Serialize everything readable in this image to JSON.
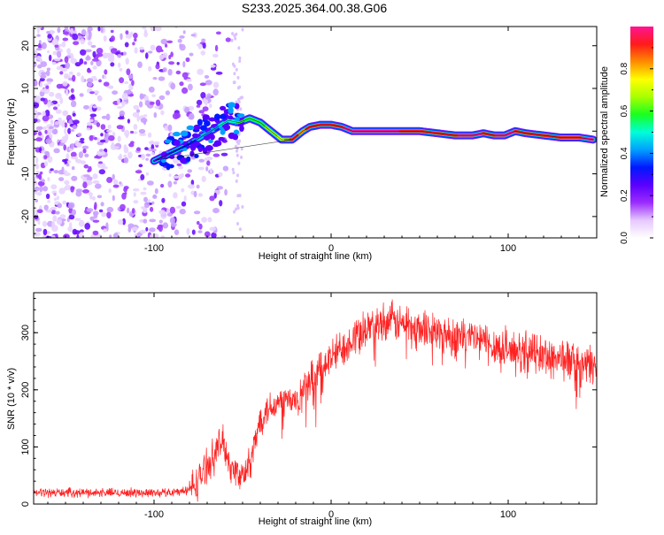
{
  "title": "S233.2025.364.00.38.G06",
  "chart_data": [
    {
      "type": "heatmap",
      "xlabel": "Height of straight line (km)",
      "ylabel": "Frequency (Hz)",
      "xlim": [
        -168,
        150
      ],
      "ylim": [
        -25,
        24.5
      ],
      "xticks": [
        -100,
        0,
        100
      ],
      "yticks": [
        -20,
        -10,
        0,
        10,
        20
      ],
      "colorbar": {
        "label": "Normalized spectral amplitude",
        "range": [
          0,
          1
        ],
        "ticks": [
          "0.0",
          "0.2",
          "0.4",
          "0.6",
          "0.8"
        ],
        "tick_values": [
          0,
          0.2,
          0.4,
          0.6,
          0.8
        ],
        "colors": [
          "#ffffff",
          "#e6c8ff",
          "#9b2cff",
          "#5a00ff",
          "#0018ff",
          "#00a0ff",
          "#00ffd8",
          "#18ff20",
          "#a8ff00",
          "#ffff00",
          "#ff8c00",
          "#ff1a1a",
          "#ff1493"
        ]
      },
      "ridge": {
        "x": [
          -100,
          -90,
          -80,
          -72,
          -64,
          -58,
          -52,
          -46,
          -40,
          -34,
          -28,
          -22,
          -16,
          -12,
          -6,
          0,
          6,
          12,
          20,
          30,
          40,
          50,
          60,
          70,
          80,
          86,
          92,
          98,
          104,
          110,
          120,
          130,
          140,
          148
        ],
        "freq": [
          -7,
          -5,
          -3,
          -1,
          1,
          2.5,
          2,
          3,
          2,
          0,
          -2,
          -2,
          0,
          1,
          1.5,
          1.5,
          1,
          0,
          0,
          0,
          0,
          0,
          -0.5,
          -1,
          -1,
          -0.5,
          -1,
          -1,
          0,
          -0.5,
          -1,
          -1.5,
          -1.5,
          -2
        ],
        "amplitude": [
          0.25,
          0.3,
          0.35,
          0.4,
          0.45,
          0.5,
          0.55,
          0.6,
          0.6,
          0.65,
          0.75,
          0.9,
          0.85,
          0.9,
          0.95,
          0.95,
          0.95,
          1,
          1,
          1,
          0.95,
          0.9,
          0.9,
          0.95,
          1,
          0.95,
          0.95,
          1,
          0.95,
          0.9,
          0.95,
          0.95,
          0.95,
          1
        ]
      }
    },
    {
      "type": "line",
      "xlabel": "Height of straight line (km)",
      "ylabel": "SNR (10 * v/v)",
      "xlim": [
        -168,
        150
      ],
      "ylim": [
        0,
        370
      ],
      "xticks": [
        -100,
        0,
        100
      ],
      "yticks": [
        0,
        100,
        200,
        300
      ],
      "color": "#ff2020",
      "series": [
        {
          "name": "SNR",
          "x": [
            -168,
            -150,
            -130,
            -110,
            -95,
            -85,
            -80,
            -75,
            -70,
            -65,
            -62,
            -60,
            -58,
            -56,
            -52,
            -48,
            -45,
            -42,
            -40,
            -38,
            -35,
            -32,
            -30,
            -28,
            -25,
            -22,
            -18,
            -15,
            -10,
            -5,
            0,
            5,
            10,
            15,
            20,
            25,
            30,
            35,
            40,
            45,
            50,
            55,
            60,
            70,
            80,
            90,
            100,
            110,
            120,
            130,
            140,
            150
          ],
          "values": [
            20,
            20,
            20,
            20,
            20,
            22,
            25,
            40,
            70,
            90,
            110,
            100,
            80,
            60,
            50,
            50,
            80,
            120,
            150,
            160,
            170,
            175,
            175,
            180,
            185,
            175,
            190,
            200,
            220,
            240,
            255,
            270,
            285,
            300,
            310,
            315,
            320,
            320,
            315,
            315,
            310,
            305,
            300,
            295,
            290,
            280,
            270,
            265,
            260,
            255,
            245,
            240
          ]
        }
      ]
    }
  ]
}
